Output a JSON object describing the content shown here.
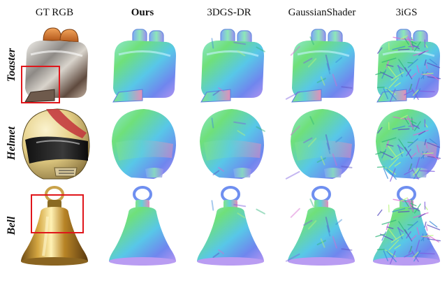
{
  "figure": {
    "columns": [
      {
        "label": "GT RGB",
        "emphasis": false
      },
      {
        "label": "Ours",
        "emphasis": true
      },
      {
        "label": "3DGS-DR",
        "emphasis": false
      },
      {
        "label": "GaussianShader",
        "emphasis": false
      },
      {
        "label": "3iGS",
        "emphasis": false
      }
    ],
    "rows": [
      {
        "label": "Toaster",
        "object": "toaster"
      },
      {
        "label": "Helmet",
        "object": "helmet"
      },
      {
        "label": "Bell",
        "object": "bell"
      }
    ],
    "cell_styles": [
      "rgb",
      "normal-smooth",
      "normal-mild",
      "normal-medium",
      "normal-noisy"
    ],
    "highlight_color": "#e0161b"
  }
}
